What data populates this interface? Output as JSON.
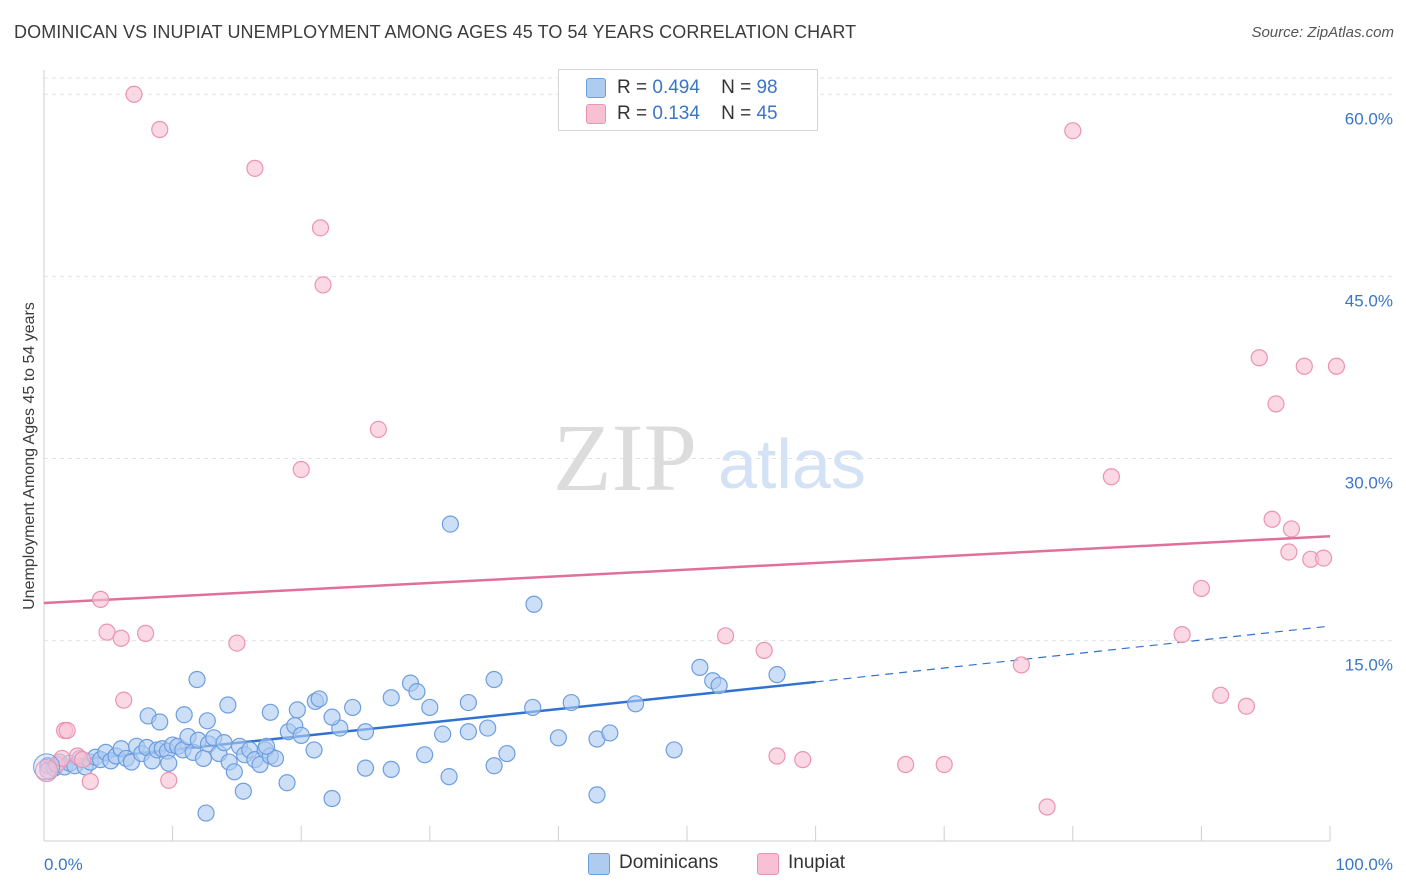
{
  "header": {
    "title": "DOMINICAN VS INUPIAT UNEMPLOYMENT AMONG AGES 45 TO 54 YEARS CORRELATION CHART",
    "source": "Source: ZipAtlas.com"
  },
  "watermark": {
    "zip": "ZIP",
    "atlas": "atlas"
  },
  "legend": {
    "rows": [
      {
        "r_label": "R =",
        "r_value": "0.494",
        "n_label": "N =",
        "n_value": "98"
      },
      {
        "r_label": "R =",
        "r_value": "0.134",
        "n_label": "N =",
        "n_value": "45"
      }
    ]
  },
  "bottom_legend": {
    "dominicans": "Dominicans",
    "inupiat": "Inupiat"
  },
  "colors": {
    "dominicans_fill": "#aecbf0",
    "dominicans_stroke": "#6d9ee0",
    "dominicans_line": "#2f72d0",
    "inupiat_fill": "#f8c1d3",
    "inupiat_stroke": "#ec93b2",
    "inupiat_line": "#e0709a",
    "grid": "#e3e3e3",
    "axis_text": "#3b76c6"
  },
  "chart_data": {
    "type": "scatter",
    "title": "DOMINICAN VS INUPIAT UNEMPLOYMENT AMONG AGES 45 TO 54 YEARS CORRELATION CHART",
    "xlabel": "",
    "ylabel": "Unemployment Among Ages 45 to 54 years",
    "xlim": [
      0,
      100
    ],
    "ylim": [
      -1.5,
      62
    ],
    "x_tick_labels": [
      {
        "value": 0,
        "label": "0.0%"
      },
      {
        "value": 100,
        "label": "100.0%"
      }
    ],
    "y_ticks": [
      {
        "value": 15,
        "label": "15.0%"
      },
      {
        "value": 30,
        "label": "30.0%"
      },
      {
        "value": 45,
        "label": "45.0%"
      },
      {
        "value": 60,
        "label": "60.0%"
      }
    ],
    "x_minor_ticks": [
      10,
      20,
      30,
      40,
      50,
      60,
      70,
      80,
      90,
      100
    ],
    "grid": true,
    "legend_position": "top-center",
    "series": [
      {
        "name": "Dominicans",
        "r": 0.494,
        "n": 98,
        "trend": {
          "x": [
            0,
            60
          ],
          "y": [
            4.9,
            11.6
          ],
          "dashed_extension_to_x": 100,
          "dashed_end_y": 16.2
        },
        "points": [
          [
            0.3,
            4.7
          ],
          [
            0.8,
            4.5
          ],
          [
            1.2,
            5.0
          ],
          [
            1.6,
            4.6
          ],
          [
            2.0,
            4.9
          ],
          [
            2.4,
            4.7
          ],
          [
            2.8,
            5.3
          ],
          [
            3.2,
            4.6
          ],
          [
            3.6,
            5.0
          ],
          [
            4.0,
            5.4
          ],
          [
            4.4,
            5.2
          ],
          [
            4.8,
            5.8
          ],
          [
            5.2,
            5.1
          ],
          [
            5.6,
            5.5
          ],
          [
            6.0,
            6.1
          ],
          [
            6.4,
            5.3
          ],
          [
            6.8,
            5.0
          ],
          [
            7.2,
            6.3
          ],
          [
            7.6,
            5.7
          ],
          [
            8.0,
            6.2
          ],
          [
            8.4,
            5.1
          ],
          [
            8.8,
            6.0
          ],
          [
            9.2,
            6.1
          ],
          [
            9.6,
            5.9
          ],
          [
            10.0,
            6.4
          ],
          [
            10.4,
            6.3
          ],
          [
            10.8,
            6.0
          ],
          [
            11.2,
            7.1
          ],
          [
            11.6,
            5.8
          ],
          [
            12.0,
            6.8
          ],
          [
            12.4,
            5.3
          ],
          [
            12.8,
            6.5
          ],
          [
            13.2,
            7.0
          ],
          [
            13.6,
            5.7
          ],
          [
            14.0,
            6.6
          ],
          [
            14.4,
            5.0
          ],
          [
            14.8,
            4.2
          ],
          [
            15.2,
            6.3
          ],
          [
            15.6,
            5.6
          ],
          [
            16.0,
            6.0
          ],
          [
            16.4,
            5.2
          ],
          [
            16.8,
            4.8
          ],
          [
            17.2,
            6.0
          ],
          [
            17.6,
            5.5
          ],
          [
            18.0,
            5.3
          ],
          [
            19.0,
            7.5
          ],
          [
            19.5,
            8.0
          ],
          [
            20.0,
            7.2
          ],
          [
            21.0,
            6.0
          ],
          [
            8.1,
            8.8
          ],
          [
            9.0,
            8.3
          ],
          [
            10.9,
            8.9
          ],
          [
            12.7,
            8.4
          ],
          [
            11.9,
            11.8
          ],
          [
            14.3,
            9.7
          ],
          [
            17.6,
            9.1
          ],
          [
            19.7,
            9.3
          ],
          [
            21.1,
            10.0
          ],
          [
            21.4,
            10.2
          ],
          [
            23.0,
            7.8
          ],
          [
            22.4,
            8.7
          ],
          [
            24.0,
            9.5
          ],
          [
            25.0,
            7.5
          ],
          [
            27.0,
            10.3
          ],
          [
            28.5,
            11.5
          ],
          [
            29.0,
            10.8
          ],
          [
            30.0,
            9.5
          ],
          [
            31.0,
            7.3
          ],
          [
            33.0,
            7.5
          ],
          [
            33.0,
            9.9
          ],
          [
            34.5,
            7.8
          ],
          [
            35.0,
            11.8
          ],
          [
            36.0,
            5.7
          ],
          [
            38.0,
            9.5
          ],
          [
            40.0,
            7.0
          ],
          [
            41.0,
            9.9
          ],
          [
            43.0,
            6.9
          ],
          [
            44.0,
            7.4
          ],
          [
            46.0,
            9.8
          ],
          [
            49.0,
            6.0
          ],
          [
            51.0,
            12.8
          ],
          [
            52.0,
            11.7
          ],
          [
            52.5,
            11.3
          ],
          [
            57.0,
            12.2
          ],
          [
            12.6,
            0.8
          ],
          [
            15.5,
            2.6
          ],
          [
            18.9,
            3.3
          ],
          [
            22.4,
            2.0
          ],
          [
            27.0,
            4.4
          ],
          [
            29.6,
            5.6
          ],
          [
            31.5,
            3.8
          ],
          [
            35.0,
            4.7
          ],
          [
            43.0,
            2.3
          ],
          [
            25.0,
            4.5
          ],
          [
            31.6,
            24.6
          ],
          [
            38.1,
            18.0
          ],
          [
            17.3,
            6.3
          ],
          [
            9.7,
            4.9
          ]
        ]
      },
      {
        "name": "Inupiat",
        "r": 0.134,
        "n": 45,
        "trend": {
          "x": [
            0,
            100
          ],
          "y": [
            18.1,
            23.6
          ]
        },
        "points": [
          [
            0.3,
            4.3
          ],
          [
            1.0,
            4.8
          ],
          [
            1.4,
            5.3
          ],
          [
            1.6,
            7.6
          ],
          [
            1.8,
            7.6
          ],
          [
            2.6,
            5.5
          ],
          [
            3.0,
            5.2
          ],
          [
            3.6,
            3.4
          ],
          [
            4.4,
            18.4
          ],
          [
            4.9,
            15.7
          ],
          [
            6.0,
            15.2
          ],
          [
            6.2,
            10.1
          ],
          [
            7.0,
            60.0
          ],
          [
            7.9,
            15.6
          ],
          [
            9.0,
            57.1
          ],
          [
            9.7,
            3.5
          ],
          [
            15.0,
            14.8
          ],
          [
            16.4,
            53.9
          ],
          [
            20.0,
            29.1
          ],
          [
            21.5,
            49.0
          ],
          [
            21.7,
            44.3
          ],
          [
            26.0,
            32.4
          ],
          [
            53.0,
            15.4
          ],
          [
            56.0,
            14.2
          ],
          [
            57.0,
            5.5
          ],
          [
            59.0,
            5.2
          ],
          [
            67.0,
            4.8
          ],
          [
            70.0,
            4.8
          ],
          [
            76.0,
            13.0
          ],
          [
            78.0,
            1.3
          ],
          [
            80.0,
            57.0
          ],
          [
            83.0,
            28.5
          ],
          [
            88.5,
            15.5
          ],
          [
            90.0,
            19.3
          ],
          [
            91.5,
            10.5
          ],
          [
            93.5,
            9.6
          ],
          [
            94.5,
            38.3
          ],
          [
            95.5,
            25.0
          ],
          [
            95.8,
            34.5
          ],
          [
            96.8,
            22.3
          ],
          [
            97.0,
            24.2
          ],
          [
            98.0,
            37.6
          ],
          [
            98.5,
            21.7
          ],
          [
            99.5,
            21.8
          ],
          [
            100.5,
            37.6
          ]
        ]
      }
    ]
  }
}
